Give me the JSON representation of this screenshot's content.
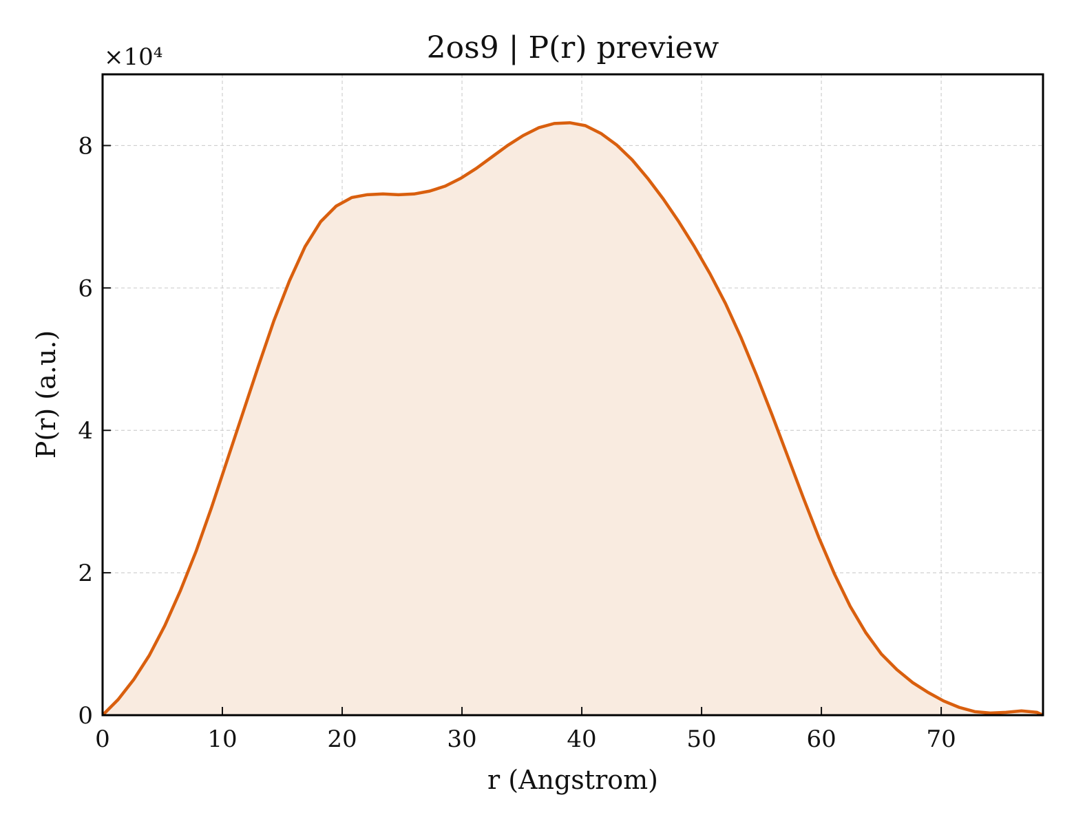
{
  "chart_data": {
    "type": "area",
    "title": "2os9 | P(r) preview",
    "xlabel": "r (Angstrom)",
    "ylabel": "P(r) (a.u.)",
    "y_multiplier_label": "×10⁴",
    "xlim": [
      0,
      78.5
    ],
    "ylim": [
      0,
      9.0
    ],
    "x_ticks": [
      0,
      10,
      20,
      30,
      40,
      50,
      60,
      70
    ],
    "y_ticks": [
      0,
      2,
      4,
      6,
      8
    ],
    "grid": true,
    "line_color": "#d95f0e",
    "fill_color": "#f9ebe0",
    "series": [
      {
        "x": [
          0,
          1.3,
          2.6,
          3.9,
          5.2,
          6.5,
          7.8,
          9.1,
          10.4,
          11.7,
          13.0,
          14.3,
          15.6,
          16.9,
          18.2,
          19.5,
          20.8,
          22.1,
          23.4,
          24.7,
          26.0,
          27.3,
          28.6,
          29.9,
          31.2,
          32.5,
          33.8,
          35.1,
          36.4,
          37.7,
          39.0,
          40.3,
          41.6,
          42.9,
          44.2,
          45.5,
          46.8,
          48.1,
          49.4,
          50.7,
          52.0,
          53.3,
          54.6,
          55.9,
          57.2,
          58.5,
          59.8,
          61.1,
          62.4,
          63.7,
          65.0,
          66.3,
          67.6,
          68.9,
          70.2,
          71.5,
          72.8,
          74.1,
          75.4,
          76.7,
          78.0,
          78.5
        ],
        "y": [
          0.0,
          0.22,
          0.5,
          0.84,
          1.26,
          1.75,
          2.3,
          2.92,
          3.58,
          4.24,
          4.9,
          5.54,
          6.1,
          6.58,
          6.93,
          7.15,
          7.27,
          7.31,
          7.32,
          7.31,
          7.32,
          7.36,
          7.43,
          7.54,
          7.68,
          7.84,
          8.0,
          8.14,
          8.25,
          8.31,
          8.32,
          8.28,
          8.17,
          8.01,
          7.8,
          7.54,
          7.25,
          6.93,
          6.58,
          6.2,
          5.78,
          5.3,
          4.77,
          4.21,
          3.63,
          3.05,
          2.49,
          1.98,
          1.53,
          1.16,
          0.86,
          0.64,
          0.46,
          0.32,
          0.2,
          0.11,
          0.05,
          0.03,
          0.04,
          0.06,
          0.04,
          0.0
        ]
      }
    ]
  }
}
